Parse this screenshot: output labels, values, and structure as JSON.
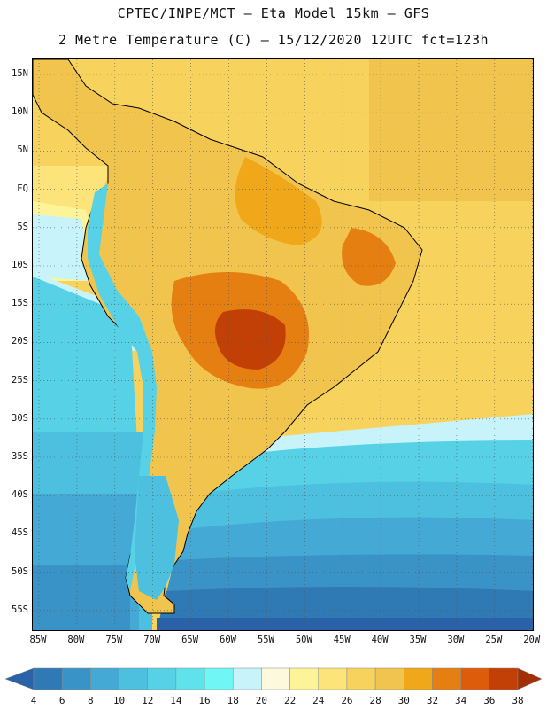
{
  "header": {
    "line1": "CPTEC/INPE/MCT –  Eta Model 15km – GFS",
    "line2": "2 Metre Temperature (C) – 15/12/2020 12UTC fct=123h"
  },
  "map": {
    "region": "South America",
    "lat_labels": [
      "15N",
      "10N",
      "5N",
      "EQ",
      "5S",
      "10S",
      "15S",
      "20S",
      "25S",
      "30S",
      "35S",
      "40S",
      "45S",
      "50S",
      "55S"
    ],
    "lon_labels": [
      "85W",
      "80W",
      "75W",
      "70W",
      "65W",
      "60W",
      "55W",
      "50W",
      "45W",
      "40W",
      "35W",
      "30W",
      "25W",
      "20W"
    ]
  },
  "colorbar": {
    "labels": [
      "4",
      "6",
      "8",
      "10",
      "12",
      "14",
      "16",
      "18",
      "20",
      "22",
      "24",
      "26",
      "28",
      "30",
      "32",
      "34",
      "36",
      "38"
    ],
    "colors": [
      "#2a62a8",
      "#2f79b5",
      "#3a93c6",
      "#45a9d6",
      "#4dbfdf",
      "#57d1e6",
      "#5fe2ec",
      "#71f6f6",
      "#c9f3fb",
      "#fdf9dd",
      "#fdf49a",
      "#fde47a",
      "#f7d35e",
      "#f1c54d",
      "#f0a81a",
      "#e57f12",
      "#dc5c0c",
      "#c23f05",
      "#a32f04"
    ],
    "ticks": [
      4,
      6,
      8,
      10,
      12,
      14,
      16,
      18,
      20,
      22,
      24,
      26,
      28,
      30,
      32,
      34,
      36,
      38
    ]
  }
}
